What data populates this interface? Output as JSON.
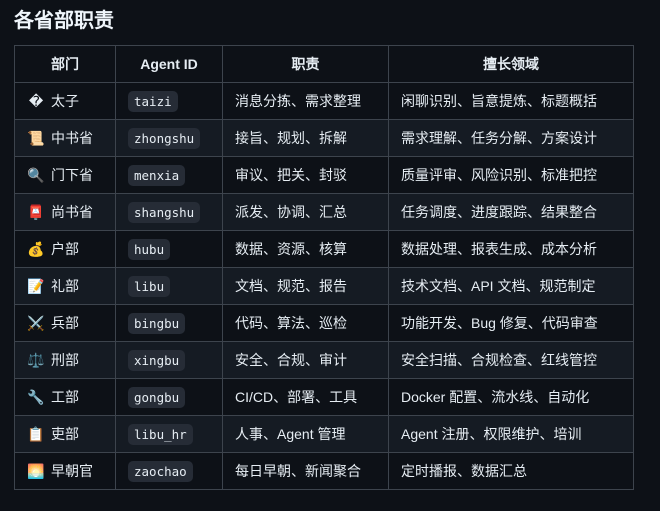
{
  "title": "各省部职责",
  "headers": [
    "部门",
    "Agent ID",
    "职责",
    "擅长领域"
  ],
  "rows": [
    {
      "icon": "�",
      "icon_name": "replacement-char-icon",
      "dept": "太子",
      "id": "taizi",
      "duty": "消息分拣、需求整理",
      "skill": "闲聊识别、旨意提炼、标题概括"
    },
    {
      "icon": "📜",
      "icon_name": "scroll-icon",
      "dept": "中书省",
      "id": "zhongshu",
      "duty": "接旨、规划、拆解",
      "skill": "需求理解、任务分解、方案设计"
    },
    {
      "icon": "🔍",
      "icon_name": "magnifier-icon",
      "dept": "门下省",
      "id": "menxia",
      "duty": "审议、把关、封驳",
      "skill": "质量评审、风险识别、标准把控"
    },
    {
      "icon": "📮",
      "icon_name": "postbox-icon",
      "dept": "尚书省",
      "id": "shangshu",
      "duty": "派发、协调、汇总",
      "skill": "任务调度、进度跟踪、结果整合"
    },
    {
      "icon": "💰",
      "icon_name": "money-bag-icon",
      "dept": "户部",
      "id": "hubu",
      "duty": "数据、资源、核算",
      "skill": "数据处理、报表生成、成本分析"
    },
    {
      "icon": "📝",
      "icon_name": "memo-icon",
      "dept": "礼部",
      "id": "libu",
      "duty": "文档、规范、报告",
      "skill": "技术文档、API 文档、规范制定"
    },
    {
      "icon": "⚔️",
      "icon_name": "crossed-swords-icon",
      "dept": "兵部",
      "id": "bingbu",
      "duty": "代码、算法、巡检",
      "skill": "功能开发、Bug 修复、代码审查"
    },
    {
      "icon": "⚖️",
      "icon_name": "scales-icon",
      "dept": "刑部",
      "id": "xingbu",
      "duty": "安全、合规、审计",
      "skill": "安全扫描、合规检查、红线管控"
    },
    {
      "icon": "🔧",
      "icon_name": "wrench-icon",
      "dept": "工部",
      "id": "gongbu",
      "duty": "CI/CD、部署、工具",
      "skill": "Docker 配置、流水线、自动化"
    },
    {
      "icon": "📋",
      "icon_name": "clipboard-icon",
      "dept": "吏部",
      "id": "libu_hr",
      "duty": "人事、Agent 管理",
      "skill": "Agent 注册、权限维护、培训"
    },
    {
      "icon": "🌅",
      "icon_name": "sunrise-icon",
      "dept": "早朝官",
      "id": "zaochao",
      "duty": "每日早朝、新闻聚合",
      "skill": "定时播报、数据汇总"
    }
  ]
}
